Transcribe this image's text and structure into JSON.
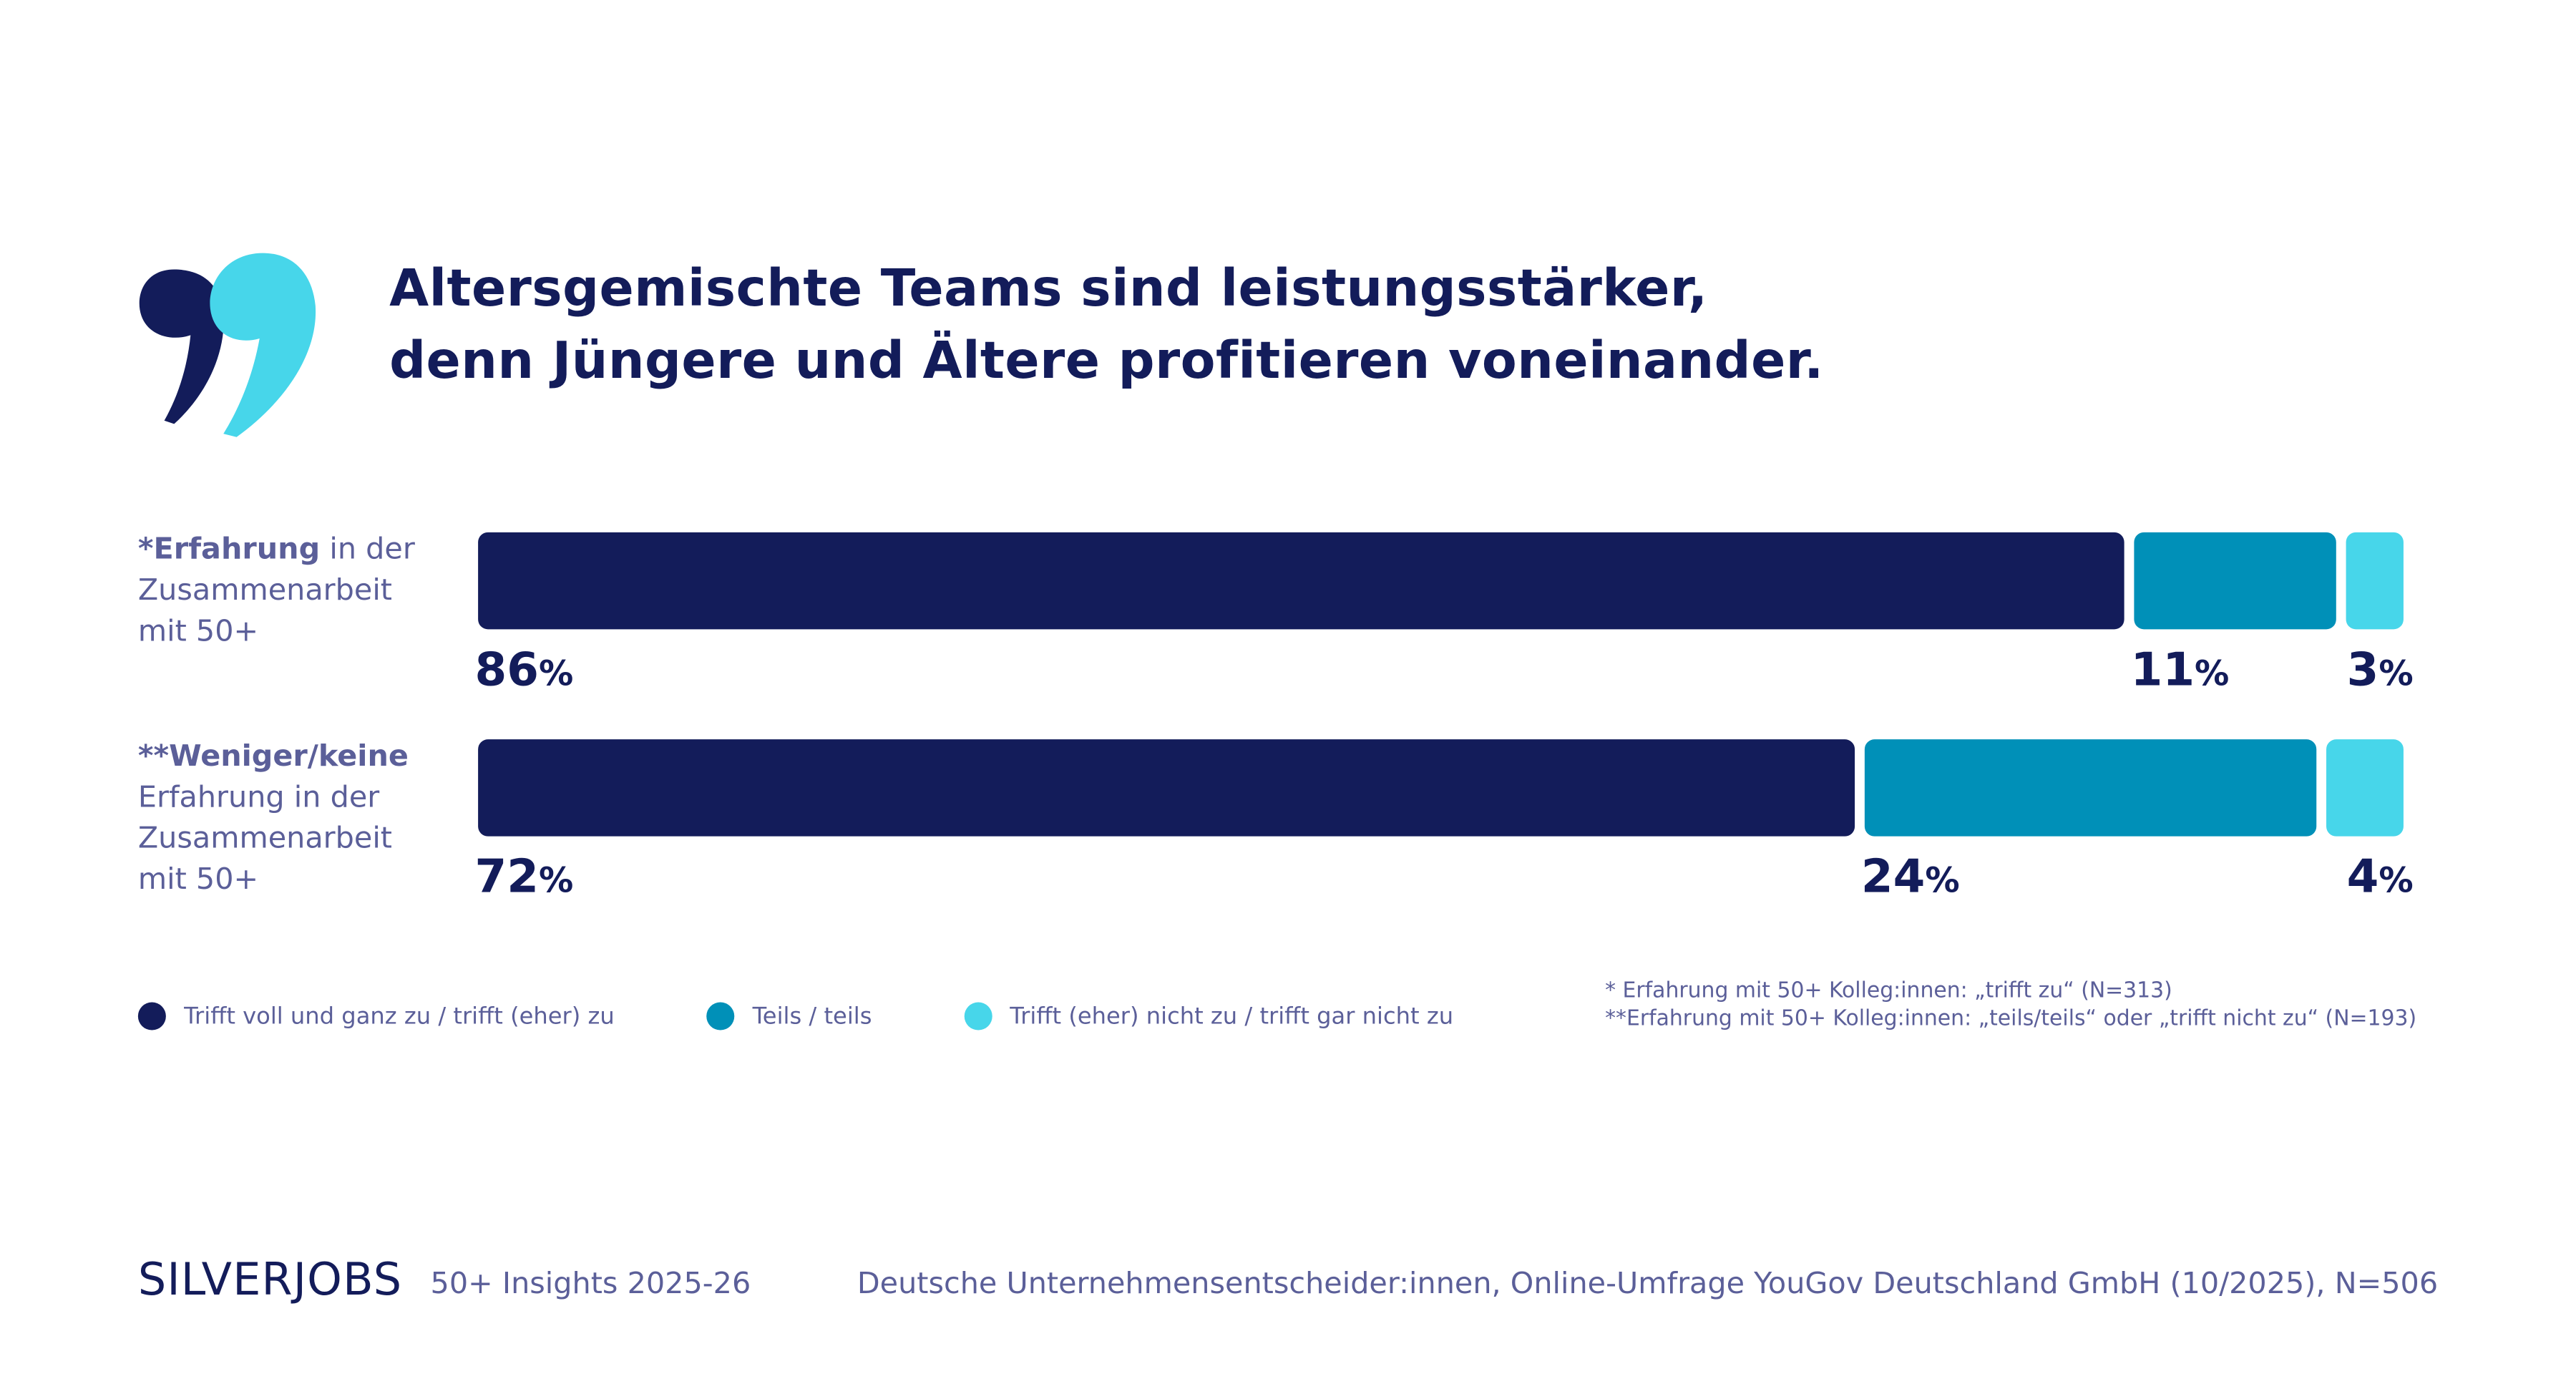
{
  "chart_data": {
    "type": "bar",
    "orientation": "horizontal",
    "stacked": true,
    "title": "Altersgemischte Teams sind leistungsstärker,\ndenn Jüngere und Ältere profitieren voneinander.",
    "categories": [
      {
        "emphasis": "*Erfahrung",
        "text": "in der Zusammenarbeit mit 50+"
      },
      {
        "emphasis": "**Weniger/keine",
        "text": "Erfahrung in der Zusammenarbeit mit 50+"
      }
    ],
    "series": [
      {
        "name": "Trifft voll und ganz zu / trifft (eher) zu",
        "color": "#131c5a",
        "values": [
          86,
          72
        ],
        "value_labels": [
          "86%",
          "72%"
        ]
      },
      {
        "name": "Teils / teils",
        "color": "#0090b8",
        "values": [
          11,
          24
        ],
        "value_labels": [
          "11%",
          "24%"
        ]
      },
      {
        "name": "Trifft (eher) nicht zu / trifft gar nicht zu",
        "color": "#47d6ea",
        "values": [
          3,
          4
        ],
        "value_labels": [
          "3%",
          "4%"
        ]
      }
    ],
    "notes": [
      "* Erfahrung mit 50+ Kolleg:innen: „trifft zu“ (N=313)",
      "**Erfahrung mit 50+ Kolleg:innen: „teils/teils“ oder „trifft nicht zu“ (N=193)"
    ]
  },
  "footer": {
    "brand": "SILVERJOBS",
    "publication": "50+ Insights 2025-26",
    "source": "Deutsche Unternehmensentscheider:innen, Online-Umfrage YouGov Deutschland GmbH (10/2025), N=506"
  }
}
